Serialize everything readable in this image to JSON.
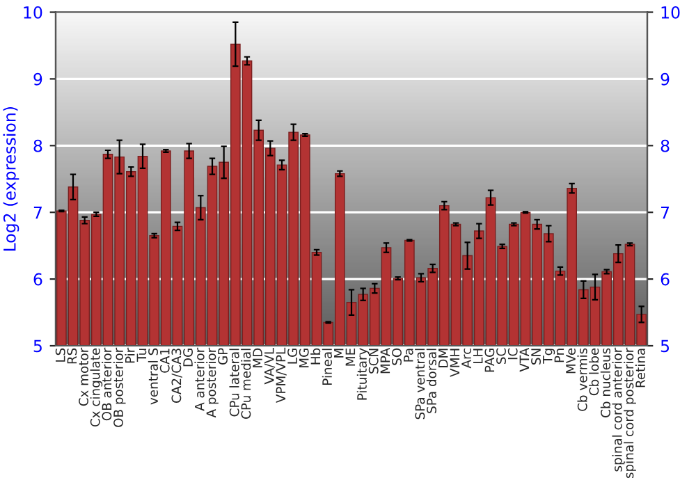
{
  "chart_data": {
    "type": "bar",
    "ylabel": "Log2 (expression)",
    "categories": [
      "LS",
      "RS",
      "Cx motor",
      "Cx cingulate",
      "OB anterior",
      "OB posterior",
      "Pir",
      "Tu",
      "ventral S",
      "CA1",
      "CA2/CA3",
      "DG",
      "A anterior",
      "A posterior",
      "GP",
      "CPu lateral",
      "CPu medial",
      "MD",
      "VA/VL",
      "VPM/VPL",
      "LG",
      "MG",
      "Hb",
      "Pineal",
      "M",
      "ME",
      "Pituitary",
      "SCN",
      "MPA",
      "SO",
      "Pa",
      "SPa ventral",
      "SPa dorsal",
      "DM",
      "VMH",
      "Arc",
      "LH",
      "PAG",
      "SC",
      "IC",
      "VTA",
      "SN",
      "Tg",
      "Pn",
      "MVe",
      "Cb vermis",
      "Cb lobe",
      "Cb nucleus",
      "spinal cord anterior",
      "spinal cord posterior",
      "Retina"
    ],
    "values": [
      7.02,
      7.38,
      6.88,
      6.97,
      7.87,
      7.83,
      7.61,
      7.84,
      6.65,
      7.92,
      6.79,
      7.92,
      7.07,
      7.69,
      7.75,
      9.52,
      9.27,
      8.23,
      7.96,
      7.71,
      8.2,
      8.16,
      6.4,
      5.35,
      7.58,
      5.65,
      5.77,
      5.86,
      6.47,
      6.01,
      6.58,
      6.02,
      6.16,
      7.1,
      6.82,
      6.35,
      6.72,
      7.22,
      6.49,
      6.82,
      7.0,
      6.82,
      6.68,
      6.12,
      7.36,
      5.84,
      5.88,
      6.11,
      6.38,
      6.52,
      5.47
    ],
    "errors": [
      0.01,
      0.19,
      0.05,
      0.03,
      0.06,
      0.25,
      0.07,
      0.18,
      0.03,
      0.02,
      0.06,
      0.11,
      0.18,
      0.12,
      0.24,
      0.33,
      0.06,
      0.15,
      0.11,
      0.07,
      0.12,
      0.02,
      0.04,
      0.01,
      0.04,
      0.19,
      0.09,
      0.07,
      0.07,
      0.02,
      0.01,
      0.06,
      0.06,
      0.06,
      0.02,
      0.2,
      0.11,
      0.11,
      0.03,
      0.02,
      0.01,
      0.07,
      0.12,
      0.06,
      0.07,
      0.13,
      0.19,
      0.03,
      0.13,
      0.02,
      0.12
    ],
    "color": "#b33333",
    "ylim": [
      5,
      10
    ],
    "yticks": [
      5,
      6,
      7,
      8,
      9,
      10
    ],
    "y2lim": [
      5,
      10
    ],
    "y2ticks": [
      5,
      6,
      7,
      8,
      9,
      10
    ],
    "grid": "y"
  }
}
